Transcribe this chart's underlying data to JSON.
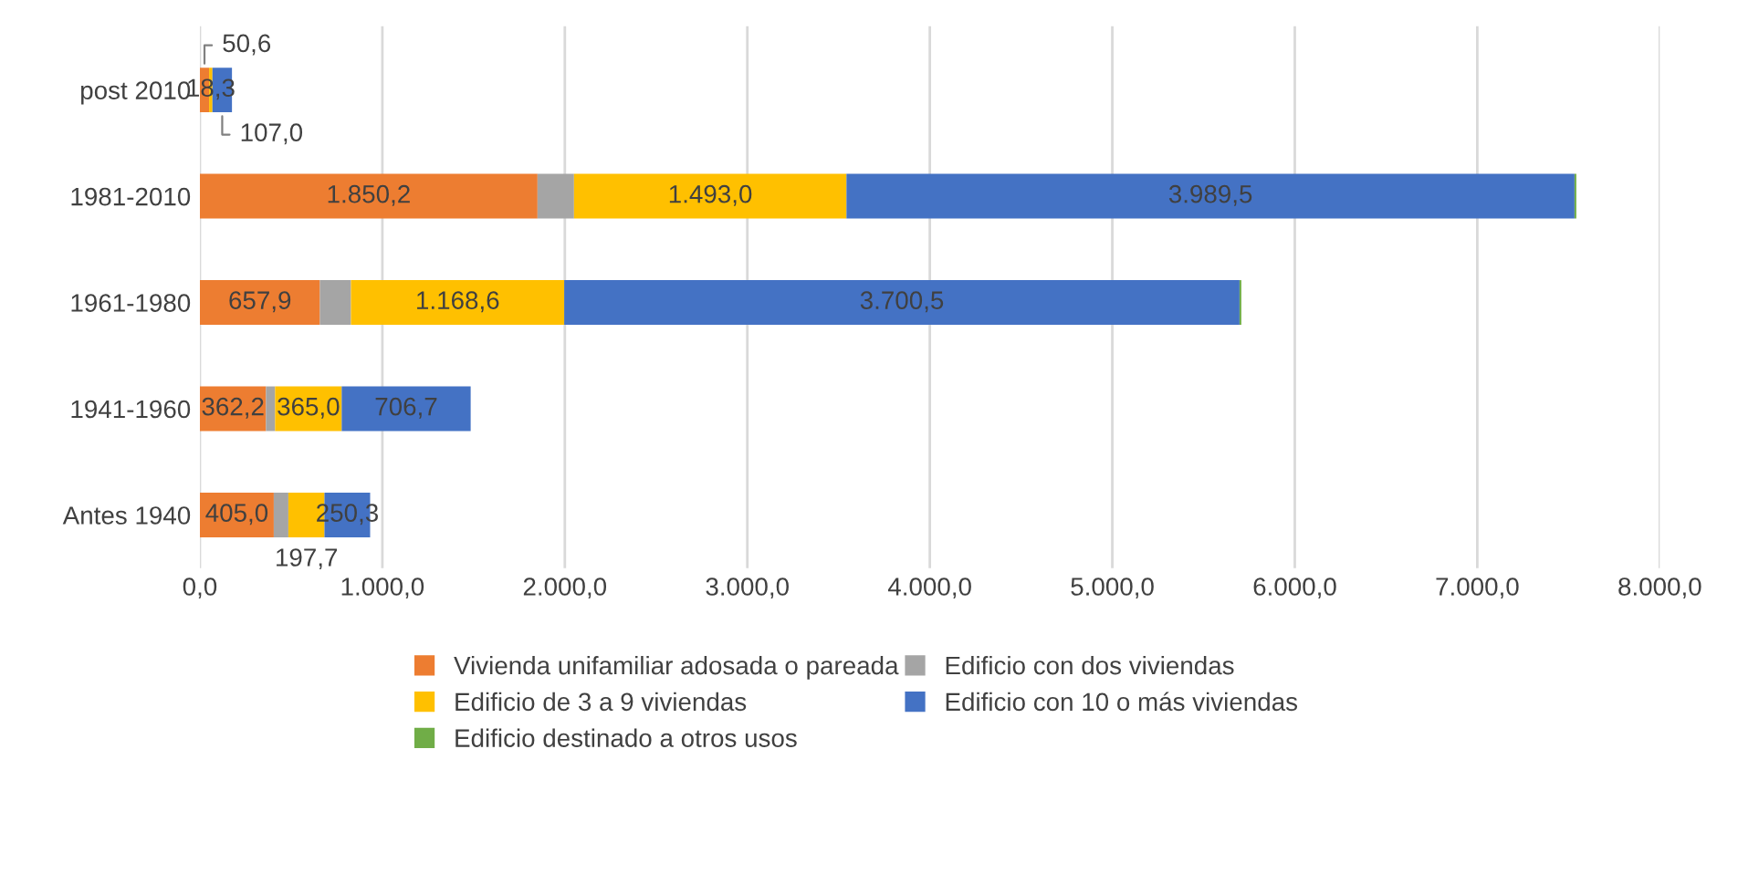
{
  "chart_data": {
    "type": "bar",
    "orientation": "horizontal",
    "stacked": true,
    "categories": [
      "post 2010",
      "1981-2010",
      "1961-1980",
      "1941-1960",
      "Antes 1940"
    ],
    "series": [
      {
        "name": "Vivienda unifamiliar adosada o pareada",
        "color": "#ed7d31",
        "values": [
          50.6,
          1850.2,
          657.9,
          362.2,
          405.0
        ],
        "value_labels": [
          "50,6",
          "1.850,2",
          "657,9",
          "362,2",
          "405,0"
        ]
      },
      {
        "name": "Edificio con dos viviendas",
        "color": "#a5a5a5",
        "values": [
          null,
          200,
          170,
          50,
          80
        ]
      },
      {
        "name": "Edificio de 3 a 9 viviendas",
        "color": "#ffc000",
        "values": [
          18.3,
          1493.0,
          1168.6,
          365.0,
          197.7
        ],
        "value_labels": [
          "18,3",
          "1.493,0",
          "1.168,6",
          "365,0",
          "197,7"
        ]
      },
      {
        "name": "Edificio con 10 o más viviendas",
        "color": "#4472c4",
        "values": [
          107.0,
          3989.5,
          3700.5,
          706.7,
          250.3
        ],
        "value_labels": [
          "107,0",
          "3.989,5",
          "3.700,5",
          "706,7",
          "250,3"
        ]
      },
      {
        "name": "Edificio destinado a otros usos",
        "color": "#70ad47",
        "values": [
          null,
          10,
          10,
          null,
          null
        ]
      }
    ],
    "xlim": [
      0,
      8000
    ],
    "xticks": [
      {
        "value": 0,
        "label": "0,0"
      },
      {
        "value": 1000,
        "label": "1.000,0"
      },
      {
        "value": 2000,
        "label": "2.000,0"
      },
      {
        "value": 3000,
        "label": "3.000,0"
      },
      {
        "value": 4000,
        "label": "4.000,0"
      },
      {
        "value": 5000,
        "label": "5.000,0"
      },
      {
        "value": 6000,
        "label": "6.000,0"
      },
      {
        "value": 7000,
        "label": "7.000,0"
      },
      {
        "value": 8000,
        "label": "8.000,0"
      }
    ],
    "grid": "x",
    "legend": "bottom"
  }
}
